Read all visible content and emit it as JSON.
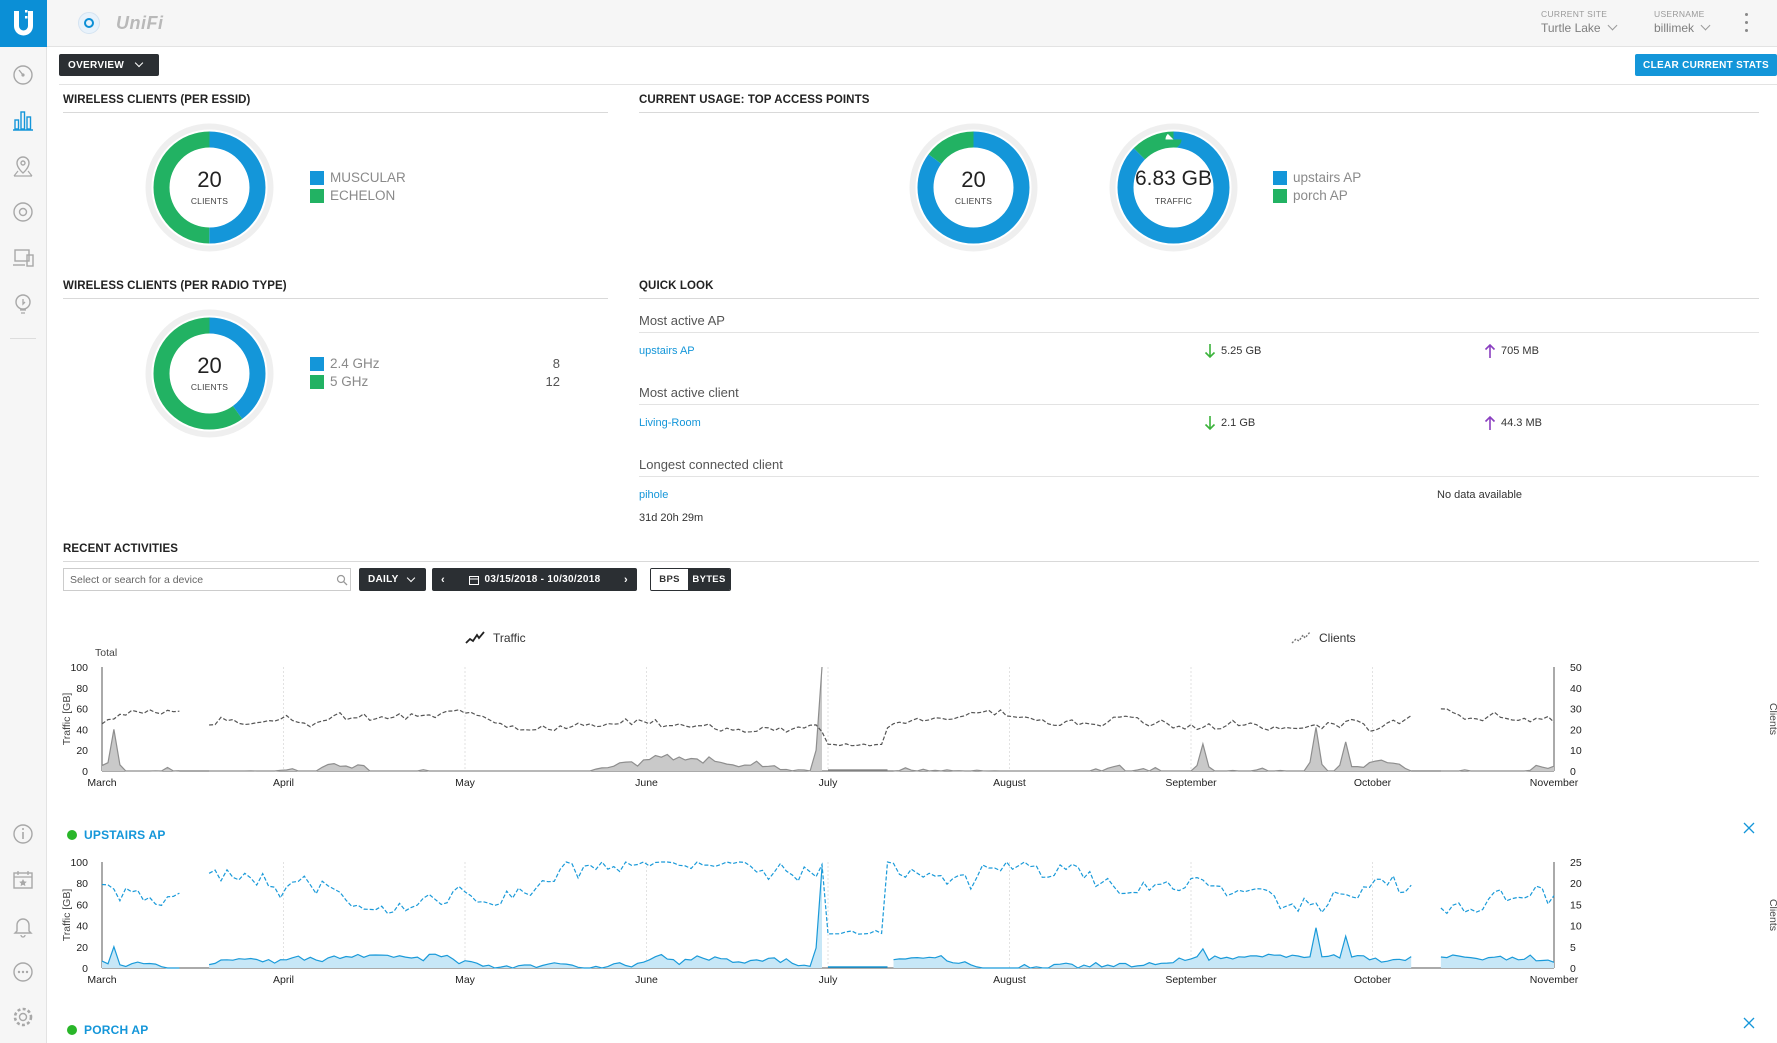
{
  "app": {
    "name": "UniFi"
  },
  "header": {
    "site_caption": "CURRENT SITE",
    "site_value": "Turtle Lake",
    "user_caption": "USERNAME",
    "user_value": "billimek"
  },
  "sidebar": {
    "items": [
      {
        "icon": "dashboard-icon"
      },
      {
        "icon": "statistics-icon",
        "active": true
      },
      {
        "icon": "map-icon"
      },
      {
        "icon": "devices-icon"
      },
      {
        "icon": "clients-icon"
      },
      {
        "icon": "insights-icon"
      }
    ],
    "bottom": [
      {
        "icon": "info-icon"
      },
      {
        "icon": "events-icon"
      },
      {
        "icon": "alerts-icon"
      },
      {
        "icon": "chat-icon"
      },
      {
        "icon": "settings-icon"
      }
    ]
  },
  "toolbar": {
    "overview_label": "OVERVIEW",
    "clear_label": "CLEAR CURRENT STATS"
  },
  "colors": {
    "blue": "#1496d9",
    "green": "#22b263",
    "accent": "#0b8fd6"
  },
  "wireless_essid": {
    "title": "WIRELESS CLIENTS (PER ESSID)",
    "total": "20",
    "caption": "CLIENTS",
    "legend": [
      {
        "label": "MUSCULAR",
        "color": "#1496d9",
        "value": 10
      },
      {
        "label": "ECHELON",
        "color": "#22b263",
        "value": 10
      }
    ]
  },
  "top_aps": {
    "title": "CURRENT USAGE: TOP ACCESS POINTS",
    "clients_total": "20",
    "clients_caption": "CLIENTS",
    "clients_split": [
      {
        "label": "upstairs AP",
        "value": 17
      },
      {
        "label": "porch AP",
        "value": 3
      }
    ],
    "traffic_total": "6.83 GB",
    "traffic_caption": "TRAFFIC",
    "traffic_split": [
      {
        "label": "upstairs AP",
        "value": 5.96
      },
      {
        "label": "porch AP",
        "value": 0.87
      }
    ],
    "legend": [
      {
        "label": "upstairs AP",
        "color": "#1496d9"
      },
      {
        "label": "porch AP",
        "color": "#22b263"
      }
    ]
  },
  "wireless_radio": {
    "title": "WIRELESS CLIENTS (PER RADIO TYPE)",
    "total": "20",
    "caption": "CLIENTS",
    "legend": [
      {
        "label": "2.4 GHz",
        "count": "8",
        "color": "#1496d9",
        "value": 8
      },
      {
        "label": "5 GHz",
        "count": "12",
        "color": "#22b263",
        "value": 12
      }
    ]
  },
  "quick_look": {
    "title": "QUICK LOOK",
    "most_active_ap": {
      "label": "Most active AP",
      "name": "upstairs AP",
      "down": "5.25 GB",
      "up": "705 MB"
    },
    "most_active_client": {
      "label": "Most active client",
      "name": "Living-Room",
      "down": "2.1 GB",
      "up": "44.3 MB"
    },
    "longest_client": {
      "label": "Longest connected client",
      "name": "pihole",
      "duration": "31d 20h 29m",
      "status": "No data available"
    }
  },
  "recent": {
    "title": "RECENT ACTIVITIES",
    "search_placeholder": "Select or search for a device",
    "period_label": "DAILY",
    "date_range": "03/15/2018 - 10/30/2018",
    "unit_bps": "BPS",
    "unit_bytes": "BYTES",
    "legend_traffic": "Traffic",
    "legend_clients": "Clients"
  },
  "chart_data": [
    {
      "type": "area",
      "title": "Total",
      "ylabel": "Traffic [GB]",
      "y2label": "Clients",
      "ylim": [
        0,
        100
      ],
      "y2lim": [
        0,
        50
      ],
      "yticks": [
        "0",
        "20",
        "40",
        "60",
        "80",
        "100"
      ],
      "y2ticks": [
        "0",
        "10",
        "20",
        "30",
        "40",
        "50"
      ],
      "xticks": [
        "March",
        "April",
        "May",
        "June",
        "July",
        "August",
        "September",
        "October",
        "November"
      ],
      "series": [
        {
          "name": "Traffic",
          "style": "area",
          "color": "#8e8e8e",
          "fill": "#c9c9c9",
          "seed": 7,
          "base": 5,
          "spread": 14,
          "spikes": [
            [
              2,
              40
            ],
            [
              121,
              100
            ],
            [
              185,
              26
            ],
            [
              204,
              42
            ],
            [
              209,
              28
            ]
          ],
          "gaps": [
            [
              14,
              17
            ],
            [
              122,
              132
            ],
            [
              221,
              224
            ]
          ]
        },
        {
          "name": "Clients",
          "style": "dashed",
          "color": "#555555",
          "seed": 3,
          "base": 24,
          "spread": 7,
          "gaps": [
            [
              14,
              17
            ],
            [
              221,
              224
            ]
          ],
          "low": [
            [
              122,
              131,
              12
            ]
          ]
        }
      ]
    },
    {
      "type": "area",
      "title": "UPSTAIRS AP",
      "ylabel": "Traffic [GB]",
      "y2label": "Clients",
      "ylim": [
        0,
        100
      ],
      "y2lim": [
        0,
        25
      ],
      "yticks": [
        "0",
        "20",
        "40",
        "60",
        "80",
        "100"
      ],
      "y2ticks": [
        "0",
        "5",
        "10",
        "15",
        "20",
        "25"
      ],
      "xticks": [
        "March",
        "April",
        "May",
        "June",
        "July",
        "August",
        "September",
        "October",
        "November"
      ],
      "series": [
        {
          "name": "Traffic",
          "style": "area",
          "color": "#1a9ad9",
          "fill": "#c7e7f7",
          "seed": 11,
          "base": 4,
          "spread": 11,
          "spikes": [
            [
              2,
              20
            ],
            [
              121,
              95
            ],
            [
              185,
              18
            ],
            [
              204,
              38
            ],
            [
              209,
              30
            ]
          ],
          "gaps": [
            [
              14,
              17
            ],
            [
              122,
              132
            ],
            [
              221,
              224
            ]
          ]
        },
        {
          "name": "Clients",
          "style": "dashed",
          "color": "#1a9ad9",
          "seed": 5,
          "base": 19,
          "spread": 8,
          "gaps": [
            [
              14,
              17
            ],
            [
              221,
              224
            ]
          ],
          "low": [
            [
              122,
              131,
              8
            ]
          ]
        }
      ]
    }
  ],
  "porch": {
    "title": "PORCH AP"
  }
}
